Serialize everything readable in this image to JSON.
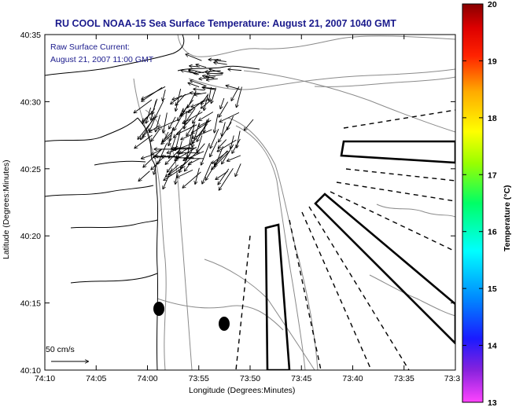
{
  "title": "RU COOL  NOAA-15  Sea Surface Temperature:  August 21, 2007 1040 GMT",
  "annotation": {
    "line1": "Raw Surface Current:",
    "line2": "August 21, 2007 11:00 GMT"
  },
  "scale_label": "50 cm/s",
  "x_axis": {
    "label": "Longitude (Degrees:Minutes)",
    "ticks": [
      "74:10",
      "74:05",
      "74:00",
      "73:55",
      "73:50",
      "73:45",
      "73:40",
      "73:35",
      "73:3"
    ]
  },
  "y_axis": {
    "label": "Latitude (Degrees:Minutes)",
    "ticks": [
      "40:35",
      "40:30",
      "40:25",
      "40:20",
      "40:15",
      "40:10"
    ]
  },
  "colorbar": {
    "label": "Temperature (°C)",
    "ticks": [
      "20",
      "19",
      "18",
      "17",
      "16",
      "15",
      "14",
      "13"
    ],
    "min": 13,
    "max": 20,
    "colors": [
      "#ff44ff",
      "#7a22e0",
      "#1a1aff",
      "#0088ff",
      "#00ffff",
      "#00ff66",
      "#88ff00",
      "#ffff00",
      "#ffaa00",
      "#ff3300",
      "#dd0000",
      "#880000"
    ]
  }
}
